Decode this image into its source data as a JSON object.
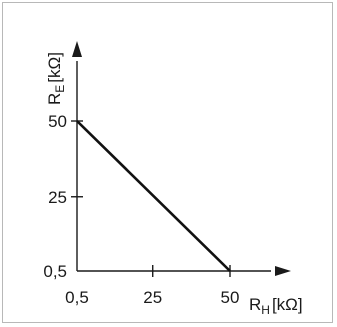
{
  "chart_data": {
    "type": "line",
    "xlabel": {
      "main": "R",
      "sub": "H",
      "unit": "[kΩ]"
    },
    "ylabel": {
      "main": "R",
      "sub": "E",
      "unit": "[kΩ]"
    },
    "x_ticks": [
      "0,5",
      "25",
      "50"
    ],
    "y_ticks": [
      "0,5",
      "25",
      "50"
    ],
    "xlim": [
      0.5,
      50
    ],
    "ylim": [
      0.5,
      50
    ],
    "grid": false,
    "series": [
      {
        "x": [
          0.5,
          50
        ],
        "y": [
          50,
          0.5
        ]
      }
    ]
  }
}
